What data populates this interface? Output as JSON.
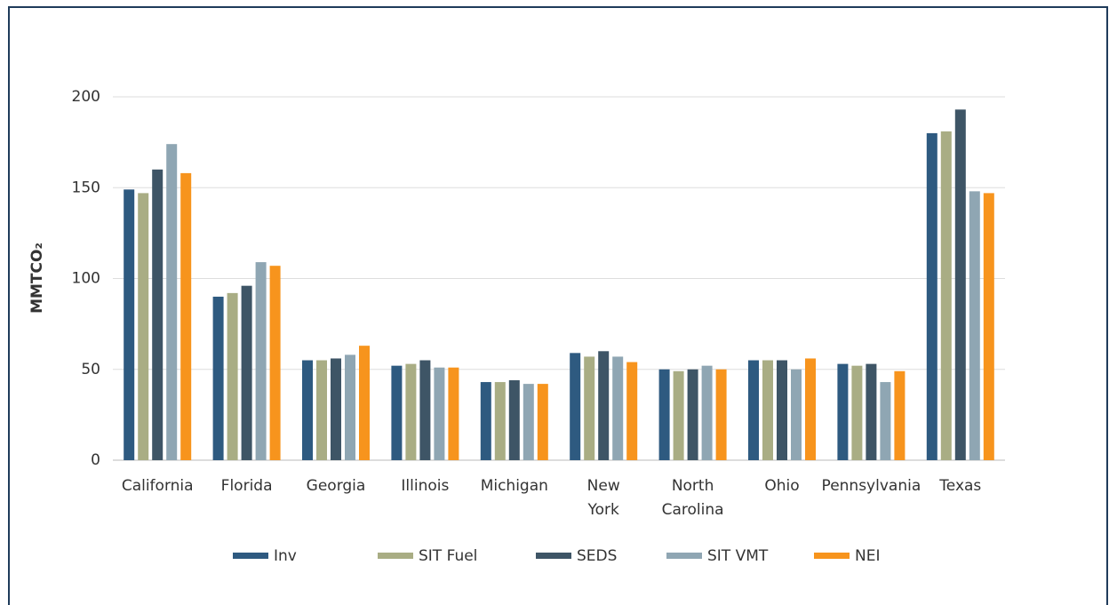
{
  "chart_data": {
    "type": "bar",
    "y_label": "MMTCO₂",
    "categories": [
      "California",
      "Florida",
      "Georgia",
      "Illinois",
      "Michigan",
      "New York",
      "North Carolina",
      "Ohio",
      "Pennsylvania",
      "Texas"
    ],
    "series": [
      {
        "name": "Inv",
        "color": "#2e5a80",
        "values": [
          149,
          90,
          55,
          52,
          43,
          59,
          50,
          55,
          53,
          180
        ]
      },
      {
        "name": "SIT Fuel",
        "color": "#a9ad84",
        "values": [
          147,
          92,
          55,
          53,
          43,
          57,
          49,
          55,
          52,
          181
        ]
      },
      {
        "name": "SEDS",
        "color": "#3e5566",
        "values": [
          160,
          96,
          56,
          55,
          44,
          60,
          50,
          55,
          53,
          193
        ]
      },
      {
        "name": "SIT VMT",
        "color": "#8fa6b3",
        "values": [
          174,
          109,
          58,
          51,
          42,
          57,
          52,
          50,
          43,
          148
        ]
      },
      {
        "name": "NEI",
        "color": "#f7941d",
        "values": [
          158,
          107,
          63,
          51,
          42,
          54,
          50,
          56,
          49,
          147
        ]
      }
    ],
    "ylim": [
      0,
      200
    ],
    "yticks": [
      0,
      50,
      100,
      150,
      200
    ],
    "grid": true,
    "legend": "bottom"
  }
}
